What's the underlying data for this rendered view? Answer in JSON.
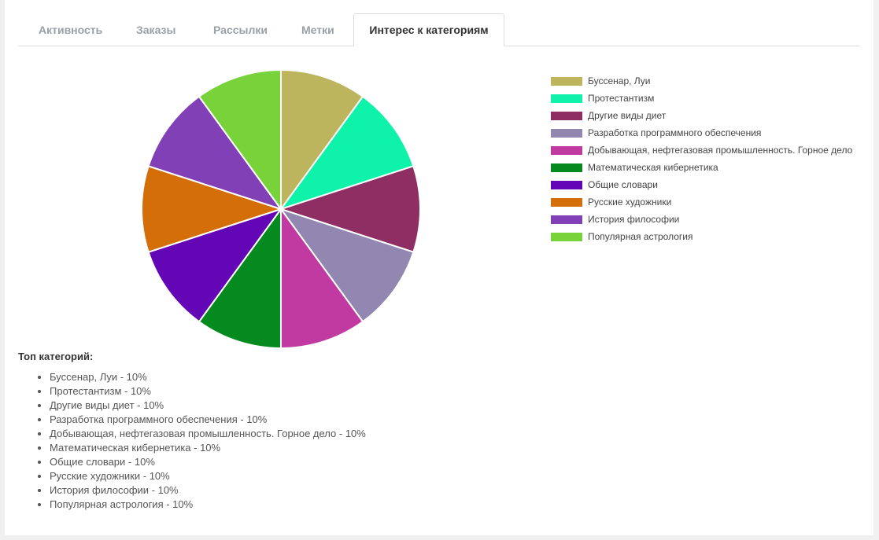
{
  "tabs": [
    {
      "label": "Активность",
      "active": false
    },
    {
      "label": "Заказы",
      "active": false
    },
    {
      "label": "Рассылки",
      "active": false
    },
    {
      "label": "Метки",
      "active": false
    },
    {
      "label": "Интерес к категориям",
      "active": true
    }
  ],
  "chart_data": {
    "type": "pie",
    "title": "",
    "legend_position": "right",
    "slices": [
      {
        "label": "Буссенар, Луи",
        "value": 10,
        "color": "#bdb55e"
      },
      {
        "label": "Протестантизм",
        "value": 10,
        "color": "#0ef2a9"
      },
      {
        "label": "Другие виды диет",
        "value": 10,
        "color": "#8e2e62"
      },
      {
        "label": "Разработка программного обеспечения",
        "value": 10,
        "color": "#9187b0"
      },
      {
        "label": "Добывающая, нефтегазовая промышленность. Горное дело",
        "value": 10,
        "color": "#c03aa2"
      },
      {
        "label": "Математическая кибернетика",
        "value": 10,
        "color": "#058a20"
      },
      {
        "label": "Общие словари",
        "value": 10,
        "color": "#6206b6"
      },
      {
        "label": "Русские художники",
        "value": 10,
        "color": "#d46e08"
      },
      {
        "label": "История философии",
        "value": 10,
        "color": "#8240b6"
      },
      {
        "label": "Популярная астрология",
        "value": 10,
        "color": "#78d33b"
      }
    ]
  },
  "top": {
    "title": "Топ категорий:",
    "items": [
      "Буссенар, Луи - 10%",
      "Протестантизм - 10%",
      "Другие виды диет - 10%",
      "Разработка программного обеспечения - 10%",
      "Добывающая, нефтегазовая промышленность. Горное дело - 10%",
      "Математическая кибернетика - 10%",
      "Общие словари - 10%",
      "Русские художники - 10%",
      "История философии - 10%",
      "Популярная астрология - 10%"
    ]
  }
}
